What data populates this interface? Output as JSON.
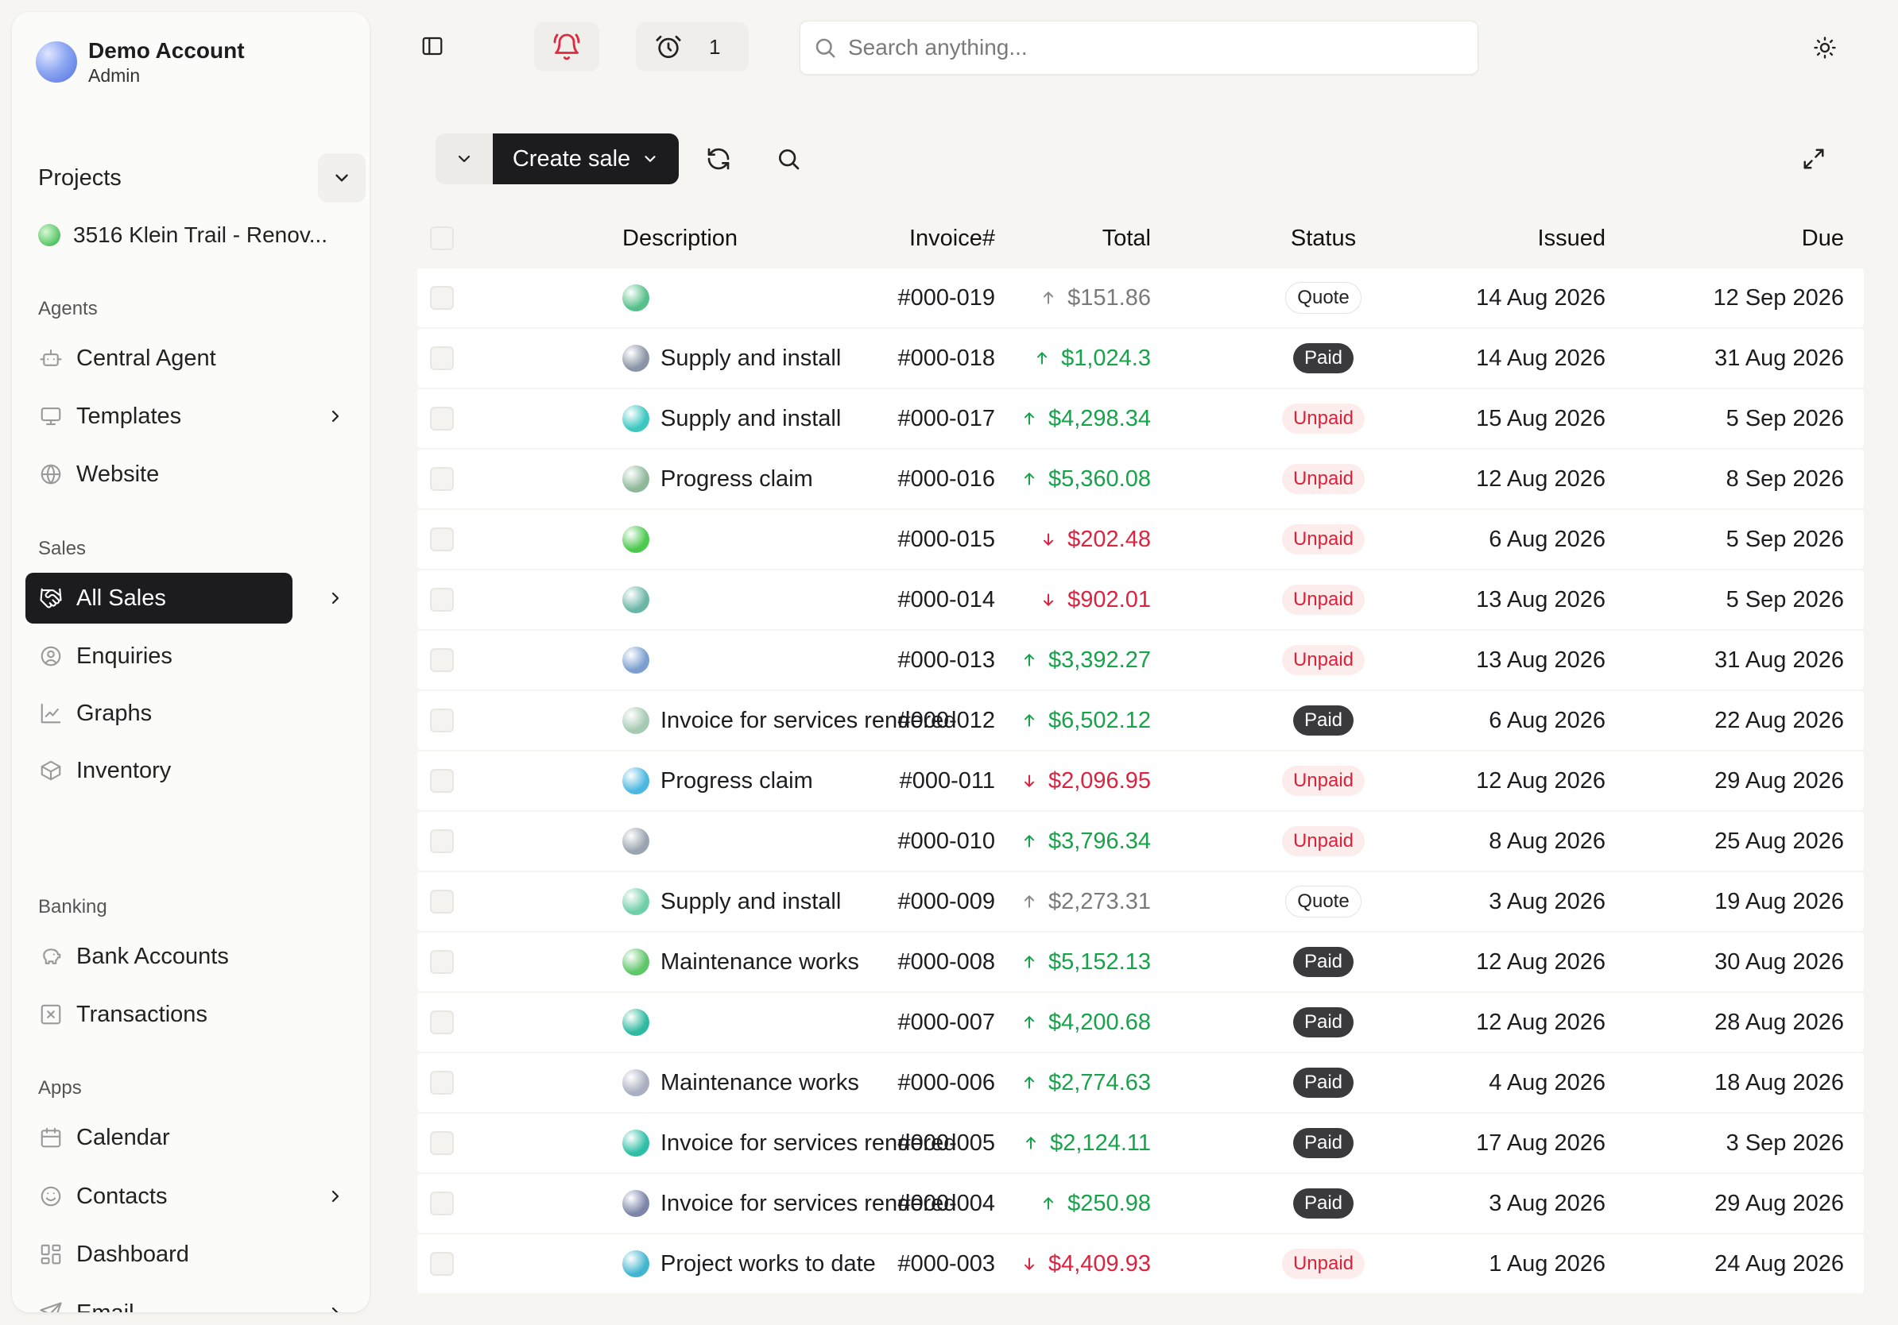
{
  "account": {
    "name": "Demo Account",
    "role": "Admin"
  },
  "projects": {
    "label": "Projects",
    "items": [
      {
        "label": "3516 Klein Trail - Renov..."
      }
    ]
  },
  "sidebar": {
    "sections": [
      {
        "title": "Agents",
        "items": [
          {
            "label": "Central Agent",
            "icon": "bot-icon",
            "chevron": false
          },
          {
            "label": "Templates",
            "icon": "monitor-icon",
            "chevron": true
          },
          {
            "label": "Website",
            "icon": "globe-icon",
            "chevron": false
          }
        ]
      },
      {
        "title": "Sales",
        "items": [
          {
            "label": "All Sales",
            "icon": "handshake-icon",
            "chevron": true,
            "active": true
          },
          {
            "label": "Enquiries",
            "icon": "user-circle-icon",
            "chevron": false
          },
          {
            "label": "Graphs",
            "icon": "chart-icon",
            "chevron": false
          },
          {
            "label": "Inventory",
            "icon": "box-icon",
            "chevron": false
          }
        ]
      },
      {
        "title": "Banking",
        "items": [
          {
            "label": "Bank Accounts",
            "icon": "piggy-bank-icon",
            "chevron": false
          },
          {
            "label": "Transactions",
            "icon": "x-square-icon",
            "chevron": false
          }
        ]
      },
      {
        "title": "Apps",
        "items": [
          {
            "label": "Calendar",
            "icon": "calendar-icon",
            "chevron": false
          },
          {
            "label": "Contacts",
            "icon": "smile-icon",
            "chevron": true
          },
          {
            "label": "Dashboard",
            "icon": "grid-icon",
            "chevron": false
          },
          {
            "label": "Email",
            "icon": "send-icon",
            "chevron": true
          }
        ]
      }
    ]
  },
  "topbar": {
    "alarm_count": "1",
    "search_placeholder": "Search anything..."
  },
  "toolbar": {
    "create_label": "Create sale"
  },
  "table": {
    "headers": {
      "invoice": "Invoice#",
      "description": "Description",
      "total": "Total",
      "status": "Status",
      "issued": "Issued",
      "due": "Due"
    },
    "rows": [
      {
        "invoice": "#000-019",
        "description": "",
        "total": "$151.86",
        "trend": "up",
        "tone": "neutral",
        "status": "Quote",
        "issued": "14 Aug 2026",
        "due": "12 Sep 2026",
        "avatar": "#57c08a"
      },
      {
        "invoice": "#000-018",
        "description": "Supply and install",
        "total": "$1,024.3",
        "trend": "up",
        "tone": "positive",
        "status": "Paid",
        "issued": "14 Aug 2026",
        "due": "31 Aug 2026",
        "avatar": "#8a94a6"
      },
      {
        "invoice": "#000-017",
        "description": "Supply and install",
        "total": "$4,298.34",
        "trend": "up",
        "tone": "positive",
        "status": "Unpaid",
        "issued": "15 Aug 2026",
        "due": "5 Sep 2026",
        "avatar": "#3cc7c0"
      },
      {
        "invoice": "#000-016",
        "description": "Progress claim",
        "total": "$5,360.08",
        "trend": "up",
        "tone": "positive",
        "status": "Unpaid",
        "issued": "12 Aug 2026",
        "due": "8 Sep 2026",
        "avatar": "#8fb89a"
      },
      {
        "invoice": "#000-015",
        "description": "",
        "total": "$202.48",
        "trend": "down",
        "tone": "negative",
        "status": "Unpaid",
        "issued": "6 Aug 2026",
        "due": "5 Sep 2026",
        "avatar": "#4cc94f"
      },
      {
        "invoice": "#000-014",
        "description": "",
        "total": "$902.01",
        "trend": "down",
        "tone": "negative",
        "status": "Unpaid",
        "issued": "13 Aug 2026",
        "due": "5 Sep 2026",
        "avatar": "#6cb6a8"
      },
      {
        "invoice": "#000-013",
        "description": "",
        "total": "$3,392.27",
        "trend": "up",
        "tone": "positive",
        "status": "Unpaid",
        "issued": "13 Aug 2026",
        "due": "31 Aug 2026",
        "avatar": "#7a9fd0"
      },
      {
        "invoice": "#000-012",
        "description": "Invoice for services rendered",
        "total": "$6,502.12",
        "trend": "up",
        "tone": "positive",
        "status": "Paid",
        "issued": "6 Aug 2026",
        "due": "22 Aug 2026",
        "avatar": "#a6c9b3"
      },
      {
        "invoice": "#000-011",
        "description": "Progress claim",
        "total": "$2,096.95",
        "trend": "down",
        "tone": "negative",
        "status": "Unpaid",
        "issued": "12 Aug 2026",
        "due": "29 Aug 2026",
        "avatar": "#4cb8e0"
      },
      {
        "invoice": "#000-010",
        "description": "",
        "total": "$3,796.34",
        "trend": "up",
        "tone": "positive",
        "status": "Unpaid",
        "issued": "8 Aug 2026",
        "due": "25 Aug 2026",
        "avatar": "#9aa4b0"
      },
      {
        "invoice": "#000-009",
        "description": "Supply and install",
        "total": "$2,273.31",
        "trend": "up",
        "tone": "neutral",
        "status": "Quote",
        "issued": "3 Aug 2026",
        "due": "19 Aug 2026",
        "avatar": "#6fcfa8"
      },
      {
        "invoice": "#000-008",
        "description": "Maintenance works",
        "total": "$5,152.13",
        "trend": "up",
        "tone": "positive",
        "status": "Paid",
        "issued": "12 Aug 2026",
        "due": "30 Aug 2026",
        "avatar": "#5fc66a"
      },
      {
        "invoice": "#000-007",
        "description": "",
        "total": "$4,200.68",
        "trend": "up",
        "tone": "positive",
        "status": "Paid",
        "issued": "12 Aug 2026",
        "due": "28 Aug 2026",
        "avatar": "#2fb9a0"
      },
      {
        "invoice": "#000-006",
        "description": "Maintenance works",
        "total": "$2,774.63",
        "trend": "up",
        "tone": "positive",
        "status": "Paid",
        "issued": "4 Aug 2026",
        "due": "18 Aug 2026",
        "avatar": "#a9aec0"
      },
      {
        "invoice": "#000-005",
        "description": "Invoice for services rendered",
        "total": "$2,124.11",
        "trend": "up",
        "tone": "positive",
        "status": "Paid",
        "issued": "17 Aug 2026",
        "due": "3 Sep 2026",
        "avatar": "#2fbfa6"
      },
      {
        "invoice": "#000-004",
        "description": "Invoice for services rendered",
        "total": "$250.98",
        "trend": "up",
        "tone": "positive",
        "status": "Paid",
        "issued": "3 Aug 2026",
        "due": "29 Aug 2026",
        "avatar": "#7d86a8"
      },
      {
        "invoice": "#000-003",
        "description": "Project works to date",
        "total": "$4,409.93",
        "trend": "down",
        "tone": "negative",
        "status": "Unpaid",
        "issued": "1 Aug 2026",
        "due": "24 Aug 2026",
        "avatar": "#43b6cf"
      }
    ]
  }
}
